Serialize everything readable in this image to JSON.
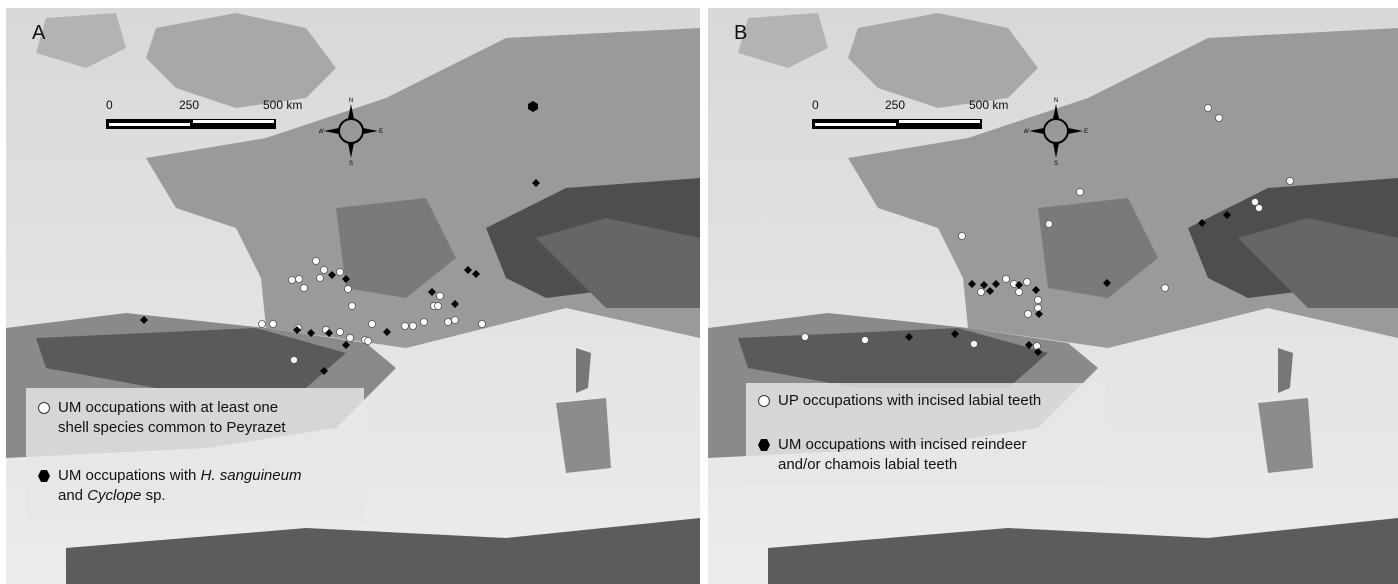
{
  "panel_a": {
    "letter": "A",
    "scale": {
      "label_0": "0",
      "label_mid": "250",
      "label_max": "500 km"
    },
    "compass": {
      "n": "N",
      "s": "S",
      "e": "E",
      "w": "W"
    },
    "legend": {
      "item1_line1": "UM occupations with at least one",
      "item1_line2": "shell species common to Peyrazet",
      "item2_prefix": "UM occupations with ",
      "item2_em1": "H. sanguineum",
      "item2_line2_prefix": "and ",
      "item2_em2": "Cyclope",
      "item2_suffix": " sp."
    }
  },
  "panel_b": {
    "letter": "B",
    "scale": {
      "label_0": "0",
      "label_mid": "250",
      "label_max": "500 km"
    },
    "compass": {
      "n": "N",
      "s": "S",
      "e": "E",
      "w": "W"
    },
    "legend": {
      "item1": "UP occupations with incised labial teeth",
      "item2_line1": "UM occupations with incised reindeer",
      "item2_line2": "and/or chamois labial teeth"
    }
  },
  "colors": {
    "sea": "#e4e4e4",
    "lowland": "#bdbdbd",
    "mountains": "#4a4a4a",
    "white_marker": "#ffffff",
    "black_marker": "#000000"
  }
}
